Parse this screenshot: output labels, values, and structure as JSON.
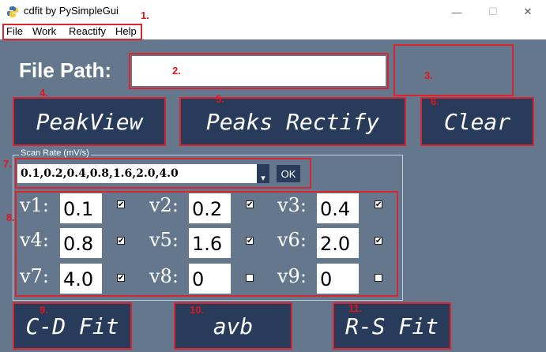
{
  "window": {
    "title": "cdfit by PySimpleGui",
    "minimize": "—",
    "maximize": "☐",
    "close": "✕"
  },
  "menu": [
    "File",
    "Work",
    "Reactify",
    "Help"
  ],
  "file_path_label": "File Path:",
  "file_path_value": "",
  "buttons": {
    "peakview": "PeakView",
    "peaks_rectify": "Peaks Rectify",
    "clear": "Clear",
    "cd_fit": "C-D Fit",
    "avb": "avb",
    "rs_fit": "R-S Fit"
  },
  "scan_rate": {
    "legend": "Scan Rate (mV/s)",
    "value": "0.1,0.2,0.4,0.8,1.6,2.0,4.0",
    "ok": "OK",
    "arrow": "▾"
  },
  "velocities": [
    {
      "label": "v1:",
      "value": "0.1",
      "checked": true
    },
    {
      "label": "v2:",
      "value": "0.2",
      "checked": true
    },
    {
      "label": "v3:",
      "value": "0.4",
      "checked": true
    },
    {
      "label": "v4:",
      "value": "0.8",
      "checked": true
    },
    {
      "label": "v5:",
      "value": "1.6",
      "checked": true
    },
    {
      "label": "v6:",
      "value": "2.0",
      "checked": true
    },
    {
      "label": "v7:",
      "value": "4.0",
      "checked": true
    },
    {
      "label": "v8:",
      "value": "0",
      "checked": false
    },
    {
      "label": "v9:",
      "value": "0",
      "checked": false
    }
  ],
  "annotations": [
    "1.",
    "2.",
    "3.",
    "4.",
    "5.",
    "6.",
    "7.",
    "8.",
    "9.",
    "10.",
    "11."
  ],
  "colors": {
    "background": "#64778d",
    "button": "#283b5b",
    "annotation": "#d9262e"
  }
}
